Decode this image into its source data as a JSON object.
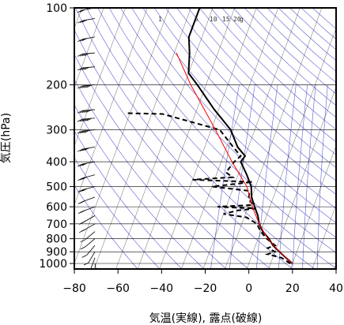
{
  "chart_data": {
    "type": "skew-t",
    "xlabel": "気温(実線), 露点(破線)",
    "ylabel": "気圧(hPa)",
    "xlim": [
      -80,
      40
    ],
    "ylim": [
      1050,
      100
    ],
    "y_scale": "log",
    "x_ticks": [
      "−80",
      "−60",
      "−40",
      "−20",
      "0",
      "20",
      "40"
    ],
    "x_tick_values": [
      -80,
      -60,
      -40,
      -20,
      0,
      20,
      40
    ],
    "y_ticks": [
      "100",
      "200",
      "300",
      "400",
      "500",
      "600",
      "700",
      "800",
      "900",
      "1000"
    ],
    "y_tick_values": [
      100,
      200,
      300,
      400,
      500,
      600,
      700,
      800,
      900,
      1000
    ],
    "grid": true,
    "mixing_ratio_labels": [
      "1",
      "5",
      "10",
      "15",
      "20",
      "g"
    ],
    "colors": {
      "temperature": "#000000",
      "dewpoint": "#000000",
      "parcel": "#ff0000",
      "background_lines": "#3333cc",
      "grid": "#000000"
    },
    "series": [
      {
        "name": "気温",
        "style": "solid",
        "points": [
          {
            "p": 1000,
            "t": 20
          },
          {
            "p": 950,
            "t": 16
          },
          {
            "p": 900,
            "t": 12
          },
          {
            "p": 850,
            "t": 8
          },
          {
            "p": 800,
            "t": 5
          },
          {
            "p": 750,
            "t": 1
          },
          {
            "p": 700,
            "t": -2
          },
          {
            "p": 650,
            "t": -4
          },
          {
            "p": 600,
            "t": -7
          },
          {
            "p": 550,
            "t": -10
          },
          {
            "p": 500,
            "t": -12
          },
          {
            "p": 450,
            "t": -16
          },
          {
            "p": 400,
            "t": -21
          },
          {
            "p": 380,
            "t": -20
          },
          {
            "p": 350,
            "t": -25
          },
          {
            "p": 300,
            "t": -31
          },
          {
            "p": 250,
            "t": -42
          },
          {
            "p": 200,
            "t": -54
          },
          {
            "p": 180,
            "t": -60
          },
          {
            "p": 150,
            "t": -63
          },
          {
            "p": 130,
            "t": -66
          },
          {
            "p": 110,
            "t": -66
          },
          {
            "p": 100,
            "t": -66
          }
        ]
      },
      {
        "name": "露点",
        "style": "dashed",
        "points": [
          {
            "p": 1000,
            "t": 19
          },
          {
            "p": 950,
            "t": 14
          },
          {
            "p": 920,
            "t": 7
          },
          {
            "p": 900,
            "t": 10
          },
          {
            "p": 870,
            "t": 6
          },
          {
            "p": 850,
            "t": 9
          },
          {
            "p": 800,
            "t": 4
          },
          {
            "p": 750,
            "t": 0
          },
          {
            "p": 700,
            "t": -3
          },
          {
            "p": 660,
            "t": -9
          },
          {
            "p": 640,
            "t": -20
          },
          {
            "p": 620,
            "t": -14
          },
          {
            "p": 610,
            "t": -6
          },
          {
            "p": 600,
            "t": -24
          },
          {
            "p": 590,
            "t": -8
          },
          {
            "p": 560,
            "t": -11
          },
          {
            "p": 520,
            "t": -12
          },
          {
            "p": 500,
            "t": -30
          },
          {
            "p": 480,
            "t": -12
          },
          {
            "p": 470,
            "t": -40
          },
          {
            "p": 460,
            "t": -22
          },
          {
            "p": 440,
            "t": -26
          },
          {
            "p": 400,
            "t": -24
          },
          {
            "p": 380,
            "t": -22
          },
          {
            "p": 350,
            "t": -27
          },
          {
            "p": 300,
            "t": -36
          },
          {
            "p": 260,
            "t": -65
          },
          {
            "p": 258,
            "t": -82
          }
        ]
      },
      {
        "name": "",
        "style": "solid",
        "color": "#ff0000",
        "points": [
          {
            "p": 1000,
            "t": 20
          },
          {
            "p": 900,
            "t": 12
          },
          {
            "p": 800,
            "t": 4.5
          },
          {
            "p": 700,
            "t": -2
          },
          {
            "p": 600,
            "t": -8
          },
          {
            "p": 500,
            "t": -14
          },
          {
            "p": 400,
            "t": -25
          },
          {
            "p": 300,
            "t": -38
          },
          {
            "p": 200,
            "t": -57
          },
          {
            "p": 150,
            "t": -69
          }
        ]
      }
    ],
    "wind_barbs": [
      {
        "p": 1000,
        "dir": 170,
        "speed": 5
      },
      {
        "p": 950,
        "dir": 200,
        "speed": 10
      },
      {
        "p": 900,
        "dir": 210,
        "speed": 10
      },
      {
        "p": 850,
        "dir": 220,
        "speed": 10
      },
      {
        "p": 800,
        "dir": 230,
        "speed": 10
      },
      {
        "p": 750,
        "dir": 230,
        "speed": 10
      },
      {
        "p": 700,
        "dir": 240,
        "speed": 15
      },
      {
        "p": 650,
        "dir": 240,
        "speed": 15
      },
      {
        "p": 600,
        "dir": 250,
        "speed": 20
      },
      {
        "p": 550,
        "dir": 250,
        "speed": 20
      },
      {
        "p": 500,
        "dir": 255,
        "speed": 25
      },
      {
        "p": 450,
        "dir": 255,
        "speed": 25
      },
      {
        "p": 400,
        "dir": 260,
        "speed": 30
      },
      {
        "p": 350,
        "dir": 260,
        "speed": 35
      },
      {
        "p": 300,
        "dir": 265,
        "speed": 40
      },
      {
        "p": 270,
        "dir": 265,
        "speed": 50
      },
      {
        "p": 250,
        "dir": 265,
        "speed": 55
      },
      {
        "p": 200,
        "dir": 265,
        "speed": 45
      },
      {
        "p": 170,
        "dir": 265,
        "speed": 40
      },
      {
        "p": 150,
        "dir": 265,
        "speed": 35
      },
      {
        "p": 130,
        "dir": 260,
        "speed": 30
      },
      {
        "p": 110,
        "dir": 260,
        "speed": 25
      },
      {
        "p": 100,
        "dir": 260,
        "speed": 20
      }
    ]
  }
}
